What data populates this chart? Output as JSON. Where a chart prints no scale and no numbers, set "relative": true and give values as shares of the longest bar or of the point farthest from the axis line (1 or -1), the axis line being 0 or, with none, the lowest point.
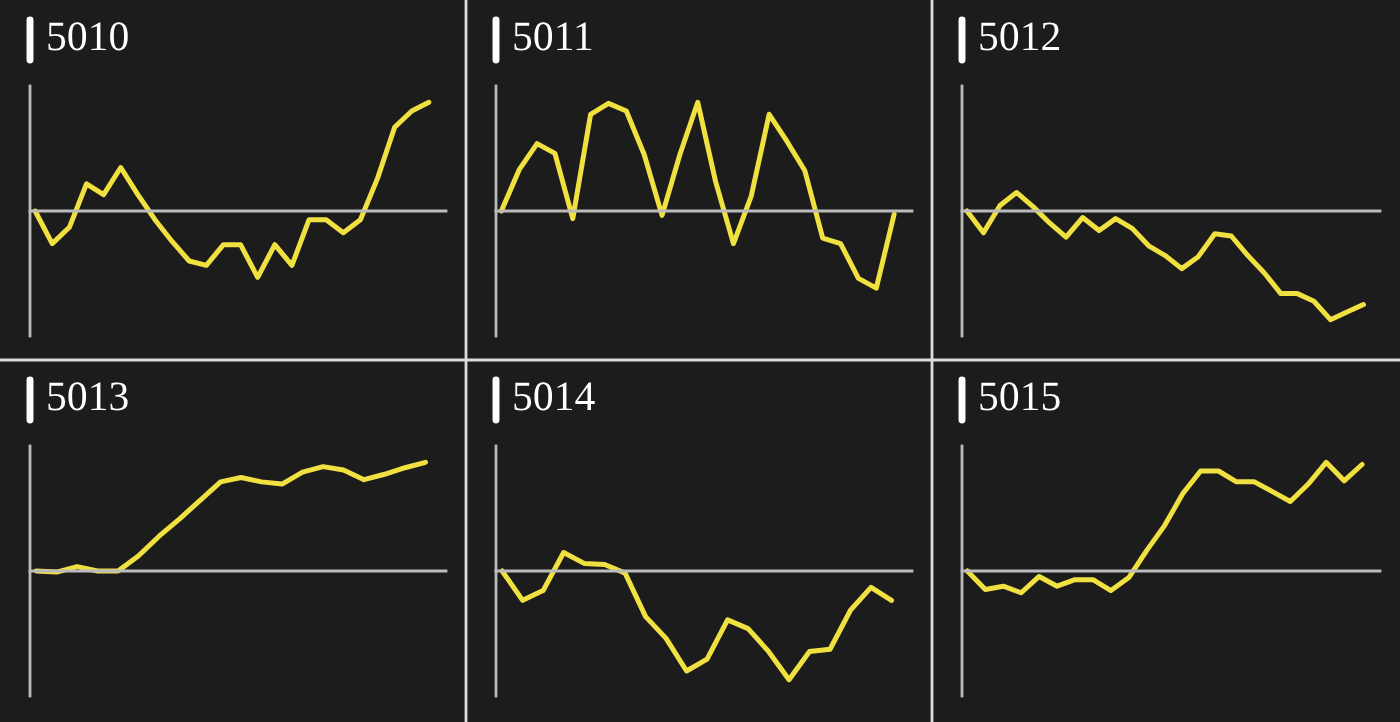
{
  "chart_data": [
    {
      "type": "line",
      "title": "5010",
      "relative": true,
      "color": "#f0e040",
      "categories": [
        null,
        null,
        null,
        null,
        null,
        null,
        null,
        null,
        null,
        null,
        null,
        null,
        null,
        null,
        null,
        null,
        null,
        null,
        null,
        null,
        null,
        null,
        null,
        null
      ],
      "values": [
        0,
        -0.3,
        -0.15,
        0.25,
        0.15,
        0.4,
        0.15,
        -0.08,
        -0.28,
        -0.46,
        -0.5,
        -0.31,
        -0.31,
        -0.61,
        -0.31,
        -0.5,
        -0.08,
        -0.08,
        -0.2,
        -0.08,
        0.3,
        0.77,
        0.92,
        1.0
      ]
    },
    {
      "type": "line",
      "title": "5011",
      "relative": true,
      "color": "#f0e040",
      "categories": [
        null,
        null,
        null,
        null,
        null,
        null,
        null,
        null,
        null,
        null,
        null,
        null,
        null,
        null,
        null,
        null,
        null,
        null,
        null,
        null,
        null,
        null,
        null
      ],
      "values": [
        0,
        0.38,
        0.62,
        0.53,
        -0.07,
        0.89,
        0.99,
        0.92,
        0.52,
        -0.04,
        0.52,
        1.0,
        0.27,
        -0.3,
        0.14,
        0.89,
        0.64,
        0.37,
        -0.25,
        -0.3,
        -0.62,
        -0.71,
        -0.03
      ]
    },
    {
      "type": "line",
      "title": "5012",
      "relative": true,
      "color": "#f0e040",
      "categories": [
        null,
        null,
        null,
        null,
        null,
        null,
        null,
        null,
        null,
        null,
        null,
        null,
        null,
        null,
        null,
        null,
        null,
        null,
        null,
        null,
        null,
        null,
        null,
        null,
        null
      ],
      "values": [
        0,
        -0.2,
        0.05,
        0.17,
        0.04,
        -0.11,
        -0.24,
        -0.06,
        -0.18,
        -0.07,
        -0.16,
        -0.32,
        -0.41,
        -0.53,
        -0.42,
        -0.21,
        -0.23,
        -0.41,
        -0.57,
        -0.76,
        -0.76,
        -0.83,
        -1.0,
        -0.93,
        -0.86
      ]
    },
    {
      "type": "line",
      "title": "5013",
      "relative": true,
      "color": "#f0e040",
      "categories": [
        null,
        null,
        null,
        null,
        null,
        null,
        null,
        null,
        null,
        null,
        null,
        null,
        null,
        null,
        null,
        null,
        null,
        null,
        null,
        null
      ],
      "values": [
        0,
        -0.01,
        0.04,
        0,
        0,
        0.14,
        0.32,
        0.48,
        0.65,
        0.82,
        0.86,
        0.82,
        0.8,
        0.91,
        0.96,
        0.93,
        0.84,
        0.89,
        0.95,
        1.0
      ]
    },
    {
      "type": "line",
      "title": "5014",
      "relative": true,
      "color": "#f0e040",
      "categories": [
        null,
        null,
        null,
        null,
        null,
        null,
        null,
        null,
        null,
        null,
        null,
        null,
        null,
        null,
        null,
        null,
        null,
        null,
        null,
        null
      ],
      "values": [
        0,
        -0.27,
        -0.18,
        0.17,
        0.07,
        0.06,
        -0.02,
        -0.42,
        -0.62,
        -0.92,
        -0.81,
        -0.45,
        -0.53,
        -0.74,
        -1.0,
        -0.74,
        -0.72,
        -0.36,
        -0.15,
        -0.27
      ]
    },
    {
      "type": "line",
      "title": "5015",
      "relative": true,
      "color": "#f0e040",
      "categories": [
        null,
        null,
        null,
        null,
        null,
        null,
        null,
        null,
        null,
        null,
        null,
        null,
        null,
        null,
        null,
        null,
        null,
        null,
        null,
        null,
        null,
        null,
        null
      ],
      "values": [
        0,
        -0.17,
        -0.14,
        -0.2,
        -0.05,
        -0.14,
        -0.08,
        -0.08,
        -0.18,
        -0.06,
        0.19,
        0.42,
        0.71,
        0.92,
        0.92,
        0.82,
        0.82,
        0.73,
        0.64,
        0.8,
        1.0,
        0.83,
        0.98
      ]
    }
  ]
}
